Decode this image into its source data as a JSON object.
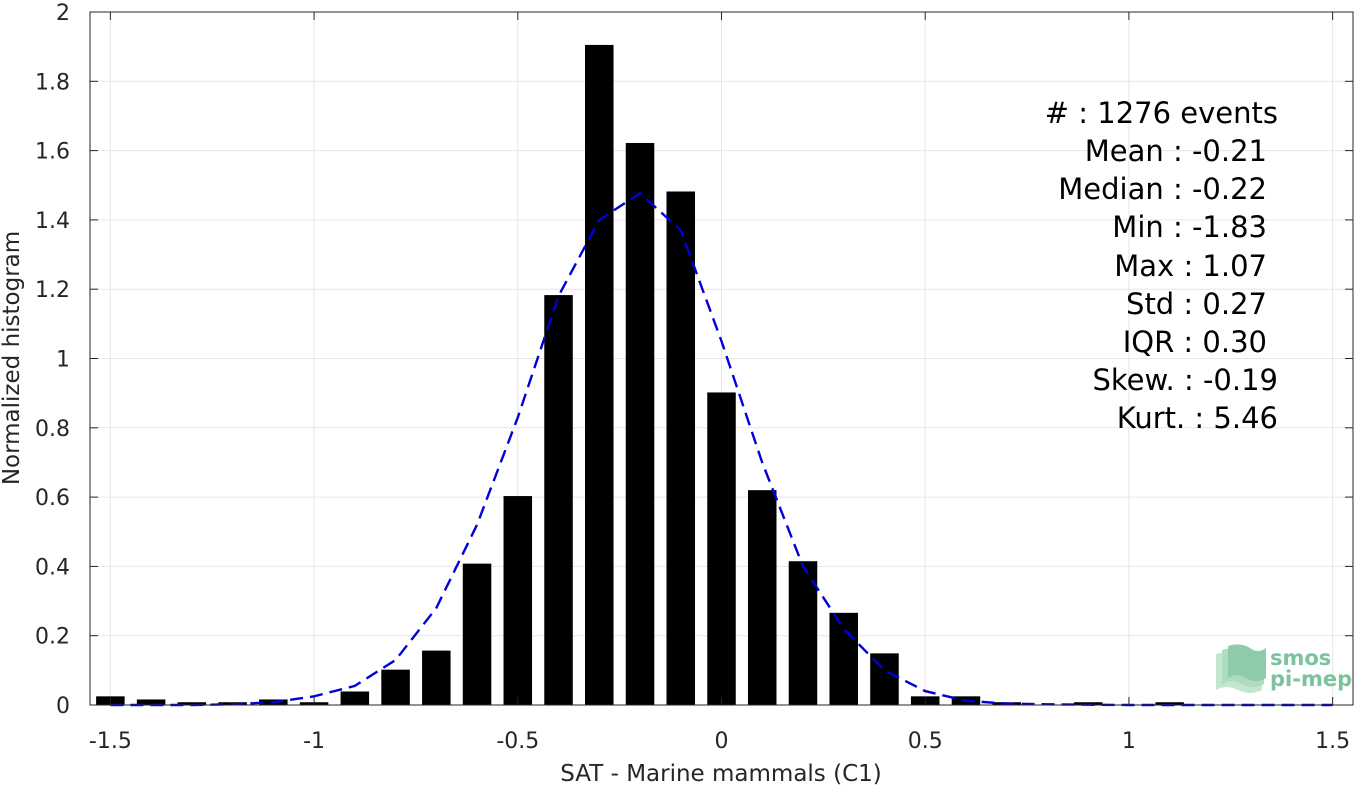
{
  "chart_data": {
    "type": "bar",
    "xlabel": "SAT - Marine mammals (C1)",
    "ylabel": "Normalized histogram",
    "xlim": [
      -1.55,
      1.55
    ],
    "ylim": [
      0,
      2
    ],
    "grid": true,
    "x_ticks": [
      "-1.5",
      "-1",
      "-0.5",
      "0",
      "0.5",
      "1",
      "1.5"
    ],
    "x_tick_values": [
      -1.5,
      -1,
      -0.5,
      0,
      0.5,
      1,
      1.5
    ],
    "y_ticks": [
      "0",
      "0.2",
      "0.4",
      "0.6",
      "0.8",
      "1",
      "1.2",
      "1.4",
      "1.6",
      "1.8",
      "2"
    ],
    "y_tick_values": [
      0,
      0.2,
      0.4,
      0.6,
      0.8,
      1.0,
      1.2,
      1.4,
      1.6,
      1.8,
      2.0
    ],
    "bar_width": 0.07,
    "bars": {
      "x": [
        -1.5,
        -1.4,
        -1.3,
        -1.2,
        -1.1,
        -1.0,
        -0.9,
        -0.8,
        -0.7,
        -0.6,
        -0.5,
        -0.4,
        -0.3,
        -0.2,
        -0.1,
        0.0,
        0.1,
        0.2,
        0.3,
        0.4,
        0.5,
        0.6,
        0.7,
        0.8,
        0.9,
        1.0,
        1.1,
        1.2
      ],
      "values": [
        0.025,
        0.016,
        0.008,
        0.008,
        0.016,
        0.008,
        0.039,
        0.102,
        0.157,
        0.408,
        0.603,
        1.183,
        1.905,
        1.622,
        1.482,
        0.902,
        0.62,
        0.415,
        0.266,
        0.149,
        0.025,
        0.025,
        0.008,
        0.0,
        0.008,
        0.0,
        0.008,
        0.0
      ],
      "color": "#000000"
    },
    "fit": {
      "style": "dashed",
      "color": "#0000dd",
      "x": [
        -1.5,
        -1.4,
        -1.3,
        -1.2,
        -1.1,
        -1.0,
        -0.9,
        -0.8,
        -0.7,
        -0.6,
        -0.5,
        -0.4,
        -0.3,
        -0.2,
        -0.1,
        0.0,
        0.1,
        0.2,
        0.3,
        0.4,
        0.5,
        0.6,
        0.7,
        0.8,
        0.9,
        1.0,
        1.1,
        1.2,
        1.3,
        1.4,
        1.5
      ],
      "y": [
        0.0,
        0.0,
        0.0,
        0.002,
        0.008,
        0.025,
        0.055,
        0.13,
        0.28,
        0.52,
        0.83,
        1.18,
        1.4,
        1.477,
        1.37,
        1.05,
        0.7,
        0.4,
        0.22,
        0.1,
        0.04,
        0.012,
        0.004,
        0.002,
        0.001,
        0.0,
        0.0,
        0.0,
        0.0,
        0.0,
        0.0
      ]
    }
  },
  "stats": [
    "#  : 1276 events",
    "Mean : -0.21",
    "Median : -0.22",
    "Min : -1.83",
    "Max : 1.07",
    "Std : 0.27",
    "IQR : 0.30",
    "Skew. : -0.19",
    "Kurt. : 5.46"
  ],
  "logo": {
    "line1": "smos",
    "line2": "pi-mep",
    "color": "#7cc29c"
  }
}
